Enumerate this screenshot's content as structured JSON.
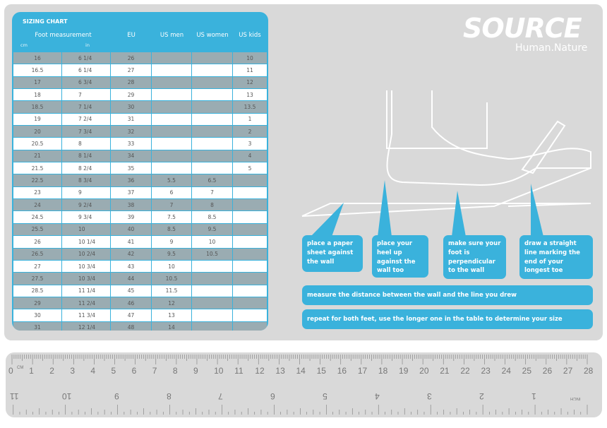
{
  "sizing_chart": {
    "title": "SIZING CHART",
    "headers": {
      "foot": "Foot measurement",
      "cm": "cm",
      "in": "in",
      "eu": "EU",
      "us_men": "US men",
      "us_women": "US women",
      "us_kids": "US kids"
    },
    "rows": [
      [
        "16",
        "6 1/4",
        "26",
        "",
        "",
        "10"
      ],
      [
        "16.5",
        "6 1/4",
        "27",
        "",
        "",
        "11"
      ],
      [
        "17",
        "6 3/4",
        "28",
        "",
        "",
        "12"
      ],
      [
        "18",
        "7",
        "29",
        "",
        "",
        "13"
      ],
      [
        "18.5",
        "7 1/4",
        "30",
        "",
        "",
        "13.5"
      ],
      [
        "19",
        "7 2/4",
        "31",
        "",
        "",
        "1"
      ],
      [
        "20",
        "7 3/4",
        "32",
        "",
        "",
        "2"
      ],
      [
        "20.5",
        "8",
        "33",
        "",
        "",
        "3"
      ],
      [
        "21",
        "8 1/4",
        "34",
        "",
        "",
        "4"
      ],
      [
        "21.5",
        "8 2/4",
        "35",
        "",
        "",
        "5"
      ],
      [
        "22.5",
        "8 3/4",
        "36",
        "5.5",
        "6.5",
        ""
      ],
      [
        "23",
        "9",
        "37",
        "6",
        "7",
        ""
      ],
      [
        "24",
        "9 2/4",
        "38",
        "7",
        "8",
        ""
      ],
      [
        "24.5",
        "9 3/4",
        "39",
        "7.5",
        "8.5",
        ""
      ],
      [
        "25.5",
        "10",
        "40",
        "8.5",
        "9.5",
        ""
      ],
      [
        "26",
        "10 1/4",
        "41",
        "9",
        "10",
        ""
      ],
      [
        "26.5",
        "10 2/4",
        "42",
        "9.5",
        "10.5",
        ""
      ],
      [
        "27",
        "10 3/4",
        "43",
        "10",
        "",
        ""
      ],
      [
        "27.5",
        "10 3/4",
        "44",
        "10.5",
        "",
        ""
      ],
      [
        "28.5",
        "11 1/4",
        "45",
        "11.5",
        "",
        ""
      ],
      [
        "29",
        "11 2/4",
        "46",
        "12",
        "",
        ""
      ],
      [
        "30",
        "11 3/4",
        "47",
        "13",
        "",
        ""
      ],
      [
        "31",
        "12 1/4",
        "48",
        "14",
        "",
        ""
      ]
    ]
  },
  "brand": {
    "logo": "SOURCE",
    "tagline": "Human.Nature"
  },
  "instructions": {
    "step1": "place a paper sheet against the wall",
    "step2": "place your heel up against the wall too",
    "step3": "make sure your foot is perpendicular to the wall",
    "step4": "draw a straight line marking the end of your longest toe",
    "step5": "measure the distance between the wall and the line you drew",
    "step6": "repeat for both feet, use the longer one in the table to determine your size"
  },
  "ruler": {
    "cm_unit": "CM",
    "inch_unit": "INCH",
    "cm_max": 28,
    "inch_max": 11
  },
  "colors": {
    "accent": "#3ab2dc",
    "panel": "#d9d9d9",
    "row_shaded": "#9aacb2"
  }
}
